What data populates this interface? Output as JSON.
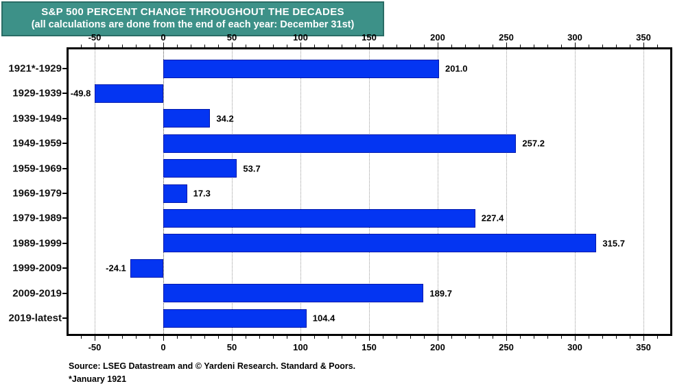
{
  "header": {
    "title": "S&P 500 PERCENT CHANGE THROUGHOUT THE DECADES",
    "subtitle": "(all calculations are done from the end of each year: December 31st)",
    "bg_color": "#3D9188",
    "border_color": "#2A6C65",
    "text_color": "#FFFFFF"
  },
  "chart_data": {
    "type": "bar",
    "orientation": "horizontal",
    "title": "S&P 500 PERCENT CHANGE THROUGHOUT THE DECADES",
    "subtitle": "(all calculations are done from the end of each year: December 31st)",
    "categories": [
      "1921*-1929",
      "1929-1939",
      "1939-1949",
      "1949-1959",
      "1959-1969",
      "1969-1979",
      "1979-1989",
      "1989-1999",
      "1999-2009",
      "2009-2019",
      "2019-latest"
    ],
    "values": [
      201.0,
      -49.8,
      34.2,
      257.2,
      53.7,
      17.3,
      227.4,
      315.7,
      -24.1,
      189.7,
      104.4
    ],
    "value_labels": [
      "201.0",
      "-49.8",
      "34.2",
      "257.2",
      "53.7",
      "17.3",
      "227.4",
      "315.7",
      "-24.1",
      "189.7",
      "104.4"
    ],
    "xlabel": "",
    "ylabel": "",
    "xlim": [
      -69,
      369.5
    ],
    "xticks": [
      -50,
      0,
      50,
      100,
      150,
      200,
      250,
      300,
      350
    ],
    "minor_tick_step": 10,
    "tick_sides": [
      "top",
      "bottom"
    ],
    "grid": "vertical dotted at major ticks",
    "bar_color": "#0435F2",
    "bar_border_color": "#0017AC",
    "grid_color": "#9a9a9a",
    "zero_grid_color": "#4a4a4a"
  },
  "footer": {
    "source": "Source: LSEG Datastream and © Yardeni Research. Standard & Poors.",
    "footnote": "*January 1921"
  }
}
